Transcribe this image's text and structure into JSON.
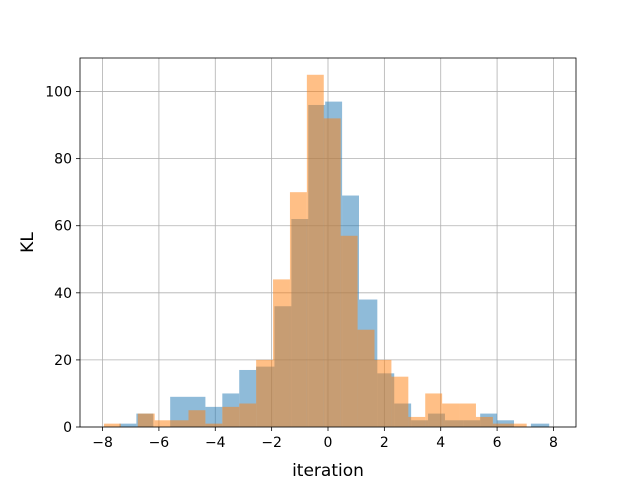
{
  "chart_data": {
    "type": "bar",
    "subtype": "overlapping-histogram",
    "title": "",
    "xlabel": "iteration",
    "ylabel": "KL",
    "xlim": [
      -8.8,
      8.8
    ],
    "ylim": [
      0,
      110
    ],
    "xticks": [
      -8,
      -6,
      -4,
      -2,
      0,
      2,
      4,
      6,
      8
    ],
    "xtick_labels": [
      "−8",
      "−6",
      "−4",
      "−2",
      "0",
      "2",
      "4",
      "6",
      "8"
    ],
    "yticks": [
      0,
      20,
      40,
      60,
      80,
      100
    ],
    "ytick_labels": [
      "0",
      "20",
      "40",
      "60",
      "80",
      "100"
    ],
    "grid": true,
    "legend": "none",
    "series": [
      {
        "color": "#1f77b4",
        "alpha": 0.5,
        "bins": [
          {
            "x0": -7.4,
            "x1": -6.8,
            "count": 1
          },
          {
            "x0": -6.8,
            "x1": -6.2,
            "count": 4
          },
          {
            "x0": -6.2,
            "x1": -5.6,
            "count": 0
          },
          {
            "x0": -5.6,
            "x1": -4.95,
            "count": 9
          },
          {
            "x0": -4.95,
            "x1": -4.35,
            "count": 9
          },
          {
            "x0": -4.35,
            "x1": -3.75,
            "count": 6
          },
          {
            "x0": -3.75,
            "x1": -3.15,
            "count": 10
          },
          {
            "x0": -3.15,
            "x1": -2.55,
            "count": 17
          },
          {
            "x0": -2.55,
            "x1": -1.9,
            "count": 18
          },
          {
            "x0": -1.9,
            "x1": -1.3,
            "count": 36
          },
          {
            "x0": -1.3,
            "x1": -0.7,
            "count": 62
          },
          {
            "x0": -0.7,
            "x1": -0.1,
            "count": 96
          },
          {
            "x0": -0.1,
            "x1": 0.5,
            "count": 97
          },
          {
            "x0": 0.5,
            "x1": 1.1,
            "count": 69
          },
          {
            "x0": 1.1,
            "x1": 1.75,
            "count": 38
          },
          {
            "x0": 1.75,
            "x1": 2.35,
            "count": 16
          },
          {
            "x0": 2.35,
            "x1": 2.95,
            "count": 7
          },
          {
            "x0": 2.95,
            "x1": 3.55,
            "count": 2
          },
          {
            "x0": 3.55,
            "x1": 4.15,
            "count": 4
          },
          {
            "x0": 4.15,
            "x1": 4.8,
            "count": 2
          },
          {
            "x0": 4.8,
            "x1": 5.4,
            "count": 2
          },
          {
            "x0": 5.4,
            "x1": 6.0,
            "count": 4
          },
          {
            "x0": 6.0,
            "x1": 6.6,
            "count": 2
          },
          {
            "x0": 6.6,
            "x1": 7.2,
            "count": 0
          },
          {
            "x0": 7.2,
            "x1": 7.85,
            "count": 1
          }
        ]
      },
      {
        "color": "#ff7f0e",
        "alpha": 0.5,
        "bins": [
          {
            "x0": -7.95,
            "x1": -7.35,
            "count": 1
          },
          {
            "x0": -7.35,
            "x1": -6.75,
            "count": 0
          },
          {
            "x0": -6.75,
            "x1": -6.15,
            "count": 4
          },
          {
            "x0": -6.15,
            "x1": -5.55,
            "count": 2
          },
          {
            "x0": -5.55,
            "x1": -4.95,
            "count": 2
          },
          {
            "x0": -4.95,
            "x1": -4.35,
            "count": 5
          },
          {
            "x0": -4.35,
            "x1": -3.75,
            "count": 1
          },
          {
            "x0": -3.75,
            "x1": -3.15,
            "count": 6
          },
          {
            "x0": -3.15,
            "x1": -2.55,
            "count": 7
          },
          {
            "x0": -2.55,
            "x1": -1.95,
            "count": 20
          },
          {
            "x0": -1.95,
            "x1": -1.35,
            "count": 44
          },
          {
            "x0": -1.35,
            "x1": -0.75,
            "count": 70
          },
          {
            "x0": -0.75,
            "x1": -0.15,
            "count": 105
          },
          {
            "x0": -0.15,
            "x1": 0.45,
            "count": 92
          },
          {
            "x0": 0.45,
            "x1": 1.05,
            "count": 57
          },
          {
            "x0": 1.05,
            "x1": 1.65,
            "count": 29
          },
          {
            "x0": 1.65,
            "x1": 2.25,
            "count": 20
          },
          {
            "x0": 2.25,
            "x1": 2.85,
            "count": 15
          },
          {
            "x0": 2.85,
            "x1": 3.45,
            "count": 3
          },
          {
            "x0": 3.45,
            "x1": 4.05,
            "count": 10
          },
          {
            "x0": 4.05,
            "x1": 4.65,
            "count": 7
          },
          {
            "x0": 4.65,
            "x1": 5.25,
            "count": 7
          },
          {
            "x0": 5.25,
            "x1": 5.85,
            "count": 3
          },
          {
            "x0": 5.85,
            "x1": 6.45,
            "count": 1
          },
          {
            "x0": 6.45,
            "x1": 7.05,
            "count": 1
          }
        ]
      }
    ]
  }
}
